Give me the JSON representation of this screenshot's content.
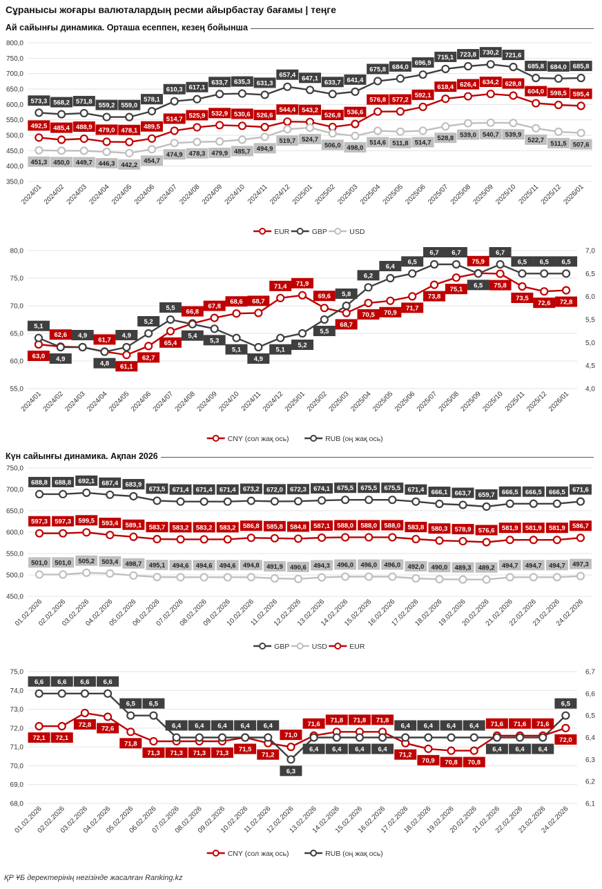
{
  "page": {
    "title": "Сұранысы жоғары валюталардың ресми айырбастау бағамы | теңге",
    "footer": "ҚР ҰБ деректерінің негізінде жасалған Ranking.kz"
  },
  "sections": {
    "monthly": "Ай сайынғы динамика. Орташа есеппен, кезең бойынша",
    "daily": "Күн сайынғы динамика. Ақпан 2026"
  },
  "colors": {
    "eur": "#c00000",
    "gbp": "#3f3f3f",
    "usd": "#bfbfbf",
    "cny": "#c00000",
    "rub": "#3f3f3f"
  },
  "chart_data": [
    {
      "id": "chart1",
      "type": "line",
      "categories": [
        "2024/01",
        "2024/02",
        "2024/03",
        "2024/04",
        "2024/05",
        "2024/06",
        "2024/07",
        "2024/08",
        "2024/09",
        "2024/10",
        "2024/11",
        "2024/12",
        "2025/01",
        "2025/02",
        "2025/03",
        "2025/04",
        "2025/05",
        "2025/06",
        "2025/07",
        "2025/08",
        "2025/09",
        "2025/10",
        "2025/11",
        "2025/12",
        "2026/01"
      ],
      "ylim": [
        350,
        800
      ],
      "yticks": [
        "350,0",
        "400,0",
        "450,0",
        "500,0",
        "550,0",
        "600,0",
        "650,0",
        "700,0",
        "750,0",
        "800,0"
      ],
      "series": [
        {
          "name": "EUR",
          "color": "#c00000",
          "values": [
            492.5,
            485.4,
            488.9,
            479.0,
            478.1,
            489.5,
            514.7,
            525.9,
            532.9,
            530.6,
            526.6,
            544.4,
            543.2,
            526.8,
            536.6,
            576.8,
            577.2,
            592.1,
            618.4,
            626.4,
            634.2,
            628.8,
            604.0,
            598.5,
            595.4
          ]
        },
        {
          "name": "GBP",
          "color": "#3f3f3f",
          "values": [
            573.3,
            568.2,
            571.8,
            559.2,
            559.0,
            578.1,
            610.3,
            617.1,
            633.7,
            635.3,
            631.3,
            657.4,
            647.1,
            633.7,
            641.4,
            675.8,
            684.0,
            696.9,
            715.1,
            723.8,
            730.2,
            721.6,
            685.8,
            684.0,
            685.8
          ]
        },
        {
          "name": "USD",
          "color": "#bfbfbf",
          "values": [
            451.3,
            450.0,
            449.7,
            446.3,
            442.2,
            454.7,
            474.9,
            478.3,
            479.9,
            485.7,
            494.9,
            519.7,
            524.7,
            506.0,
            498.0,
            514.6,
            511.8,
            514.7,
            528.8,
            539.0,
            540.7,
            539.9,
            522.7,
            511.5,
            507.6
          ]
        }
      ],
      "legend": [
        "EUR",
        "GBP",
        "USD"
      ]
    },
    {
      "id": "chart2",
      "type": "line",
      "categories": [
        "2024/01",
        "2024/02",
        "2024/03",
        "2024/04",
        "2024/05",
        "2024/06",
        "2024/07",
        "2024/08",
        "2024/09",
        "2024/10",
        "2024/11",
        "2024/12",
        "2025/01",
        "2025/02",
        "2025/03",
        "2025/04",
        "2025/05",
        "2025/06",
        "2025/07",
        "2025/08",
        "2025/09",
        "2025/10",
        "2025/11",
        "2025/12",
        "2026/01"
      ],
      "ylim": [
        55,
        80
      ],
      "y2lim": [
        4.0,
        7.0
      ],
      "yticks": [
        "55,0",
        "60,0",
        "65,0",
        "70,0",
        "75,0",
        "80,0"
      ],
      "y2ticks": [
        "4,0",
        "4,5",
        "5,0",
        "5,5",
        "6,0",
        "6,5",
        "7,0"
      ],
      "series": [
        {
          "name": "CNY",
          "color": "#c00000",
          "axis": "left",
          "values": [
            63.0,
            62.6,
            62.5,
            61.7,
            61.1,
            62.7,
            65.4,
            66.8,
            67.8,
            68.6,
            68.7,
            71.4,
            71.9,
            69.6,
            68.7,
            70.5,
            70.9,
            71.7,
            73.8,
            75.1,
            75.9,
            75.8,
            73.5,
            72.6,
            72.8
          ]
        },
        {
          "name": "RUB",
          "color": "#3f3f3f",
          "axis": "right",
          "values": [
            5.1,
            4.9,
            4.9,
            4.8,
            4.9,
            5.2,
            5.5,
            5.4,
            5.3,
            5.1,
            4.9,
            5.1,
            5.2,
            5.5,
            5.8,
            6.2,
            6.4,
            6.5,
            6.7,
            6.7,
            6.5,
            6.7,
            6.5,
            6.5,
            6.5
          ]
        }
      ],
      "legend": [
        "CNY (сол жақ ось)",
        "RUB (оң жақ ось)"
      ]
    },
    {
      "id": "chart3",
      "type": "line",
      "categories": [
        "01.02.2026",
        "02.02.2026",
        "03.02.2026",
        "04.02.2026",
        "05.02.2026",
        "06.02.2026",
        "07.02.2026",
        "08.02.2026",
        "09.02.2026",
        "10.02.2026",
        "11.02.2026",
        "12.02.2026",
        "13.02.2026",
        "14.02.2026",
        "15.02.2026",
        "16.02.2026",
        "17.02.2026",
        "18.02.2026",
        "19.02.2026",
        "20.02.2026",
        "21.02.2026",
        "22.02.2026",
        "23.02.2026",
        "24.02.2026"
      ],
      "ylim": [
        450,
        750
      ],
      "yticks": [
        "450,0",
        "500,0",
        "550,0",
        "600,0",
        "650,0",
        "700,0",
        "750,0"
      ],
      "series": [
        {
          "name": "GBP",
          "color": "#3f3f3f",
          "values": [
            688.8,
            688.8,
            692.1,
            687.4,
            683.9,
            673.5,
            671.4,
            671.4,
            671.4,
            673.2,
            672.0,
            672.3,
            674.1,
            675.5,
            675.5,
            675.5,
            671.4,
            666.1,
            663.7,
            659.7,
            666.5,
            666.5,
            666.5,
            671.6
          ]
        },
        {
          "name": "USD",
          "color": "#bfbfbf",
          "values": [
            501.0,
            501.0,
            505.2,
            503.4,
            498.7,
            495.1,
            494.6,
            494.6,
            494.6,
            494.8,
            491.9,
            490.6,
            494.3,
            496.0,
            496.0,
            496.0,
            492.0,
            490.0,
            489.3,
            489.2,
            494.7,
            494.7,
            494.7,
            497.3
          ]
        },
        {
          "name": "EUR",
          "color": "#c00000",
          "values": [
            597.3,
            597.3,
            599.5,
            593.4,
            589.1,
            583.7,
            583.2,
            583.2,
            583.2,
            586.8,
            585.8,
            584.8,
            587.1,
            588.0,
            588.0,
            588.0,
            583.8,
            580.3,
            578.9,
            576.6,
            581.9,
            581.9,
            581.9,
            586.7
          ]
        }
      ],
      "legend": [
        "GBP",
        "USD",
        "EUR"
      ]
    },
    {
      "id": "chart4",
      "type": "line",
      "categories": [
        "01.02.2026",
        "02.02.2026",
        "03.02.2026",
        "04.02.2026",
        "05.02.2026",
        "06.02.2026",
        "07.02.2026",
        "08.02.2026",
        "09.02.2026",
        "10.02.2026",
        "11.02.2026",
        "12.02.2026",
        "13.02.2026",
        "14.02.2026",
        "15.02.2026",
        "16.02.2026",
        "17.02.2026",
        "18.02.2026",
        "19.02.2026",
        "20.02.2026",
        "21.02.2026",
        "22.02.2026",
        "23.02.2026",
        "24.02.2026"
      ],
      "ylim": [
        68,
        75
      ],
      "y2lim": [
        6.1,
        6.7
      ],
      "yticks": [
        "68,0",
        "69,0",
        "70,0",
        "71,0",
        "72,0",
        "73,0",
        "74,0",
        "75,0"
      ],
      "y2ticks": [
        "6,1",
        "6,2",
        "6,3",
        "6,4",
        "6,5",
        "6,6",
        "6,7"
      ],
      "series": [
        {
          "name": "CNY",
          "color": "#c00000",
          "axis": "left",
          "values": [
            72.1,
            72.1,
            72.8,
            72.6,
            71.8,
            71.3,
            71.3,
            71.3,
            71.3,
            71.5,
            71.2,
            71.0,
            71.6,
            71.8,
            71.8,
            71.8,
            71.2,
            70.9,
            70.8,
            70.8,
            71.6,
            71.6,
            71.6,
            72.0
          ]
        },
        {
          "name": "RUB",
          "color": "#3f3f3f",
          "axis": "right",
          "values": [
            6.6,
            6.6,
            6.6,
            6.6,
            6.5,
            6.5,
            6.4,
            6.4,
            6.4,
            6.4,
            6.4,
            6.3,
            6.4,
            6.4,
            6.4,
            6.4,
            6.4,
            6.4,
            6.4,
            6.4,
            6.4,
            6.4,
            6.4,
            6.5
          ]
        }
      ],
      "legend": [
        "CNY (сол жақ ось)",
        "RUB (оң жақ ось)"
      ]
    }
  ]
}
